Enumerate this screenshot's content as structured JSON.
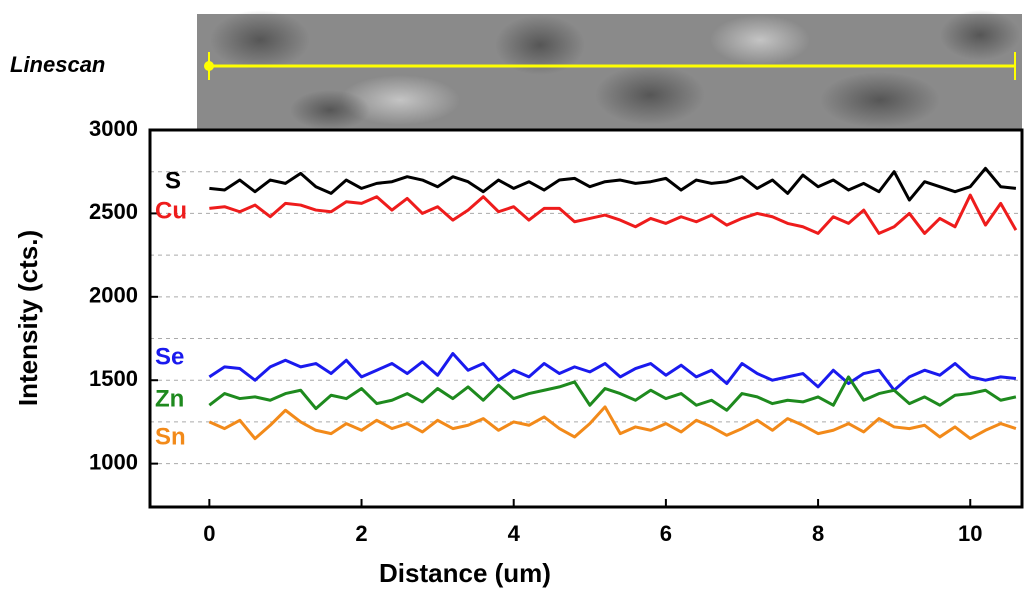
{
  "linescan_label": "Linescan",
  "chart_data": {
    "type": "line",
    "x_label": "Distance (um)",
    "y_label": "Intensity (cts.)",
    "xlim": [
      -0.78,
      10.68
    ],
    "ylim": [
      740,
      3000
    ],
    "xticks": [
      0,
      2,
      4,
      6,
      8,
      10
    ],
    "yticks": [
      1000,
      1500,
      2000,
      2500,
      3000
    ],
    "grid_yticks": [
      1000,
      1250,
      1500,
      1750,
      2000,
      2250,
      2500,
      2750
    ],
    "grid": true,
    "x": [
      0,
      0.2,
      0.4,
      0.6,
      0.8,
      1,
      1.2,
      1.4,
      1.6,
      1.8,
      2,
      2.2,
      2.4,
      2.6,
      2.8,
      3,
      3.2,
      3.4,
      3.6,
      3.8,
      4,
      4.2,
      4.4,
      4.6,
      4.8,
      5,
      5.2,
      5.4,
      5.6,
      5.8,
      6,
      6.2,
      6.4,
      6.6,
      6.8,
      7,
      7.2,
      7.4,
      7.6,
      7.8,
      8,
      8.2,
      8.4,
      8.6,
      8.8,
      9,
      9.2,
      9.4,
      9.6,
      9.8,
      10,
      10.2,
      10.4,
      10.6
    ],
    "series": [
      {
        "name": "S",
        "color": "#000000",
        "values": [
          2650,
          2640,
          2700,
          2630,
          2700,
          2680,
          2740,
          2660,
          2620,
          2700,
          2650,
          2680,
          2690,
          2720,
          2700,
          2660,
          2720,
          2690,
          2630,
          2700,
          2650,
          2690,
          2640,
          2700,
          2710,
          2660,
          2690,
          2700,
          2680,
          2690,
          2710,
          2640,
          2700,
          2680,
          2690,
          2720,
          2650,
          2700,
          2620,
          2730,
          2660,
          2700,
          2640,
          2680,
          2630,
          2750,
          2580,
          2690,
          2660,
          2630,
          2660,
          2770,
          2660,
          2650
        ]
      },
      {
        "name": "Cu",
        "color": "#ee1c1c",
        "values": [
          2530,
          2540,
          2510,
          2550,
          2480,
          2560,
          2550,
          2520,
          2510,
          2570,
          2560,
          2600,
          2520,
          2590,
          2500,
          2540,
          2460,
          2520,
          2600,
          2510,
          2540,
          2460,
          2530,
          2530,
          2450,
          2470,
          2490,
          2460,
          2420,
          2470,
          2440,
          2480,
          2450,
          2490,
          2430,
          2470,
          2500,
          2480,
          2440,
          2420,
          2380,
          2480,
          2440,
          2520,
          2380,
          2420,
          2500,
          2380,
          2470,
          2420,
          2610,
          2430,
          2560,
          2400
        ]
      },
      {
        "name": "Se",
        "color": "#1a1aee",
        "values": [
          1520,
          1580,
          1570,
          1500,
          1580,
          1620,
          1580,
          1600,
          1540,
          1620,
          1520,
          1560,
          1600,
          1540,
          1610,
          1530,
          1660,
          1560,
          1600,
          1500,
          1560,
          1520,
          1600,
          1540,
          1580,
          1550,
          1600,
          1520,
          1570,
          1600,
          1530,
          1590,
          1520,
          1560,
          1480,
          1600,
          1540,
          1500,
          1520,
          1540,
          1460,
          1560,
          1480,
          1540,
          1560,
          1440,
          1520,
          1560,
          1530,
          1600,
          1520,
          1500,
          1520,
          1510
        ]
      },
      {
        "name": "Zn",
        "color": "#1e8a1e",
        "values": [
          1350,
          1420,
          1390,
          1400,
          1380,
          1420,
          1440,
          1330,
          1410,
          1390,
          1450,
          1360,
          1380,
          1420,
          1370,
          1450,
          1390,
          1460,
          1380,
          1470,
          1390,
          1420,
          1440,
          1460,
          1490,
          1350,
          1450,
          1420,
          1380,
          1440,
          1390,
          1420,
          1350,
          1380,
          1320,
          1420,
          1400,
          1360,
          1380,
          1370,
          1400,
          1350,
          1520,
          1380,
          1420,
          1440,
          1360,
          1400,
          1350,
          1410,
          1420,
          1440,
          1380,
          1400
        ]
      },
      {
        "name": "Sn",
        "color": "#f28a1a",
        "values": [
          1250,
          1210,
          1260,
          1150,
          1230,
          1320,
          1250,
          1200,
          1180,
          1240,
          1200,
          1260,
          1210,
          1240,
          1190,
          1260,
          1210,
          1230,
          1270,
          1200,
          1250,
          1230,
          1280,
          1210,
          1160,
          1240,
          1340,
          1180,
          1220,
          1200,
          1240,
          1190,
          1260,
          1220,
          1170,
          1210,
          1260,
          1200,
          1270,
          1230,
          1180,
          1200,
          1240,
          1190,
          1270,
          1220,
          1210,
          1230,
          1160,
          1220,
          1150,
          1200,
          1240,
          1210
        ]
      }
    ]
  }
}
